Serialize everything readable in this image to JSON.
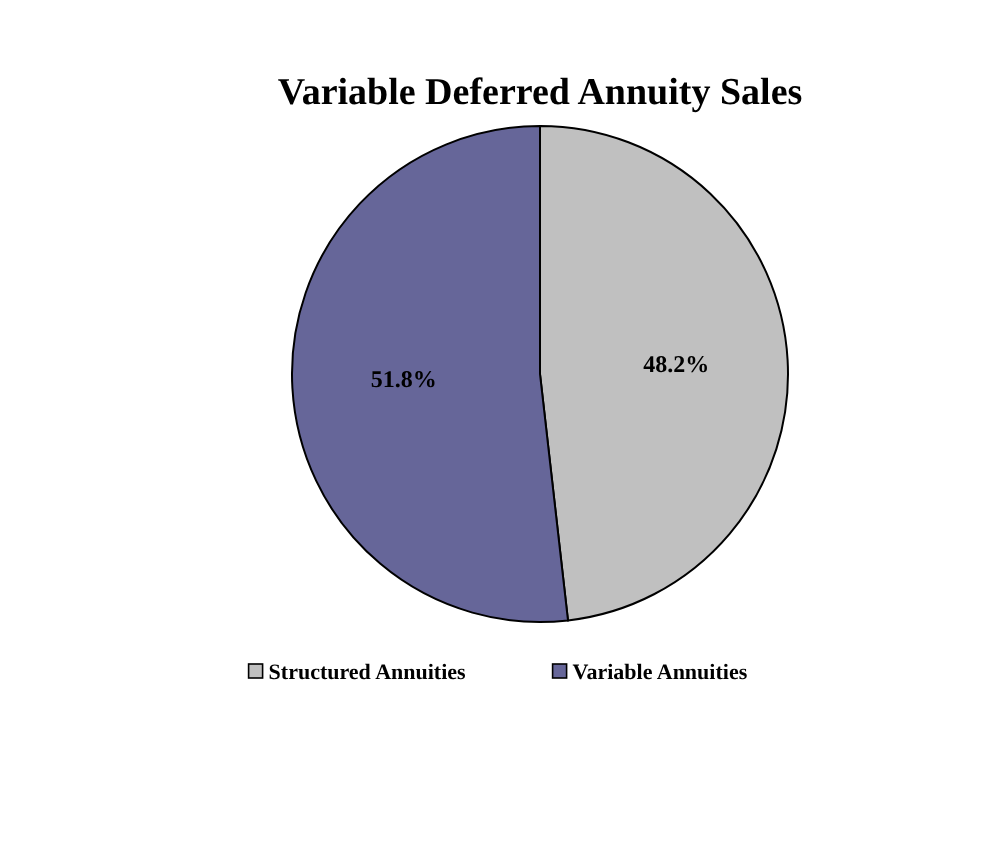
{
  "chart_data": {
    "type": "pie",
    "title": "Variable Deferred Annuity Sales",
    "categories": [
      "Structured Annuities",
      "Variable Annuities"
    ],
    "values": [
      48.2,
      51.8
    ],
    "colors": [
      "#c0c0c0",
      "#666699"
    ],
    "value_labels": [
      "48.2%",
      "51.8%"
    ],
    "legend": "bottom"
  }
}
